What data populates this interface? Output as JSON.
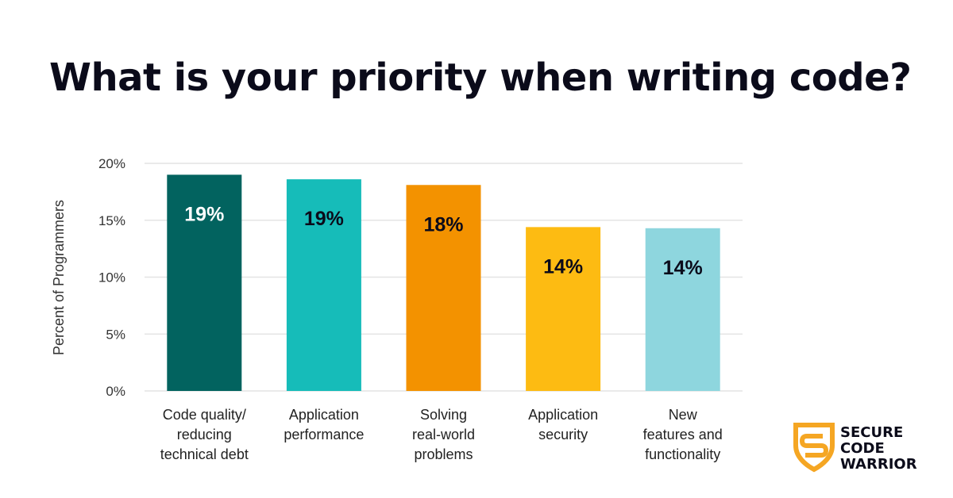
{
  "chart_data": {
    "type": "bar",
    "title": "What is your priority when writing code?",
    "ylabel": "Percent of Programmers",
    "ylim": [
      0,
      20
    ],
    "yticks": [
      0,
      5,
      10,
      15,
      20
    ],
    "ytick_labels": [
      "0%",
      "5%",
      "10%",
      "15%",
      "20%"
    ],
    "grid": true,
    "categories": [
      [
        "Code quality/",
        "reducing",
        "technical debt"
      ],
      [
        "Application",
        "performance"
      ],
      [
        "Solving",
        "real-world",
        "problems"
      ],
      [
        "Application",
        "security"
      ],
      [
        "New",
        "features and",
        "functionality"
      ]
    ],
    "values": [
      19.0,
      18.6,
      18.1,
      14.4,
      14.3
    ],
    "data_labels": [
      "19%",
      "19%",
      "18%",
      "14%",
      "14%"
    ],
    "colors": [
      "#02635f",
      "#16bcb9",
      "#f39200",
      "#fdbb12",
      "#8ed6de"
    ],
    "label_colors": [
      "#ffffff",
      "#0b0b1a",
      "#0b0b1a",
      "#0b0b1a",
      "#0b0b1a"
    ]
  },
  "logo": {
    "lines": [
      "SECURE",
      "CODE",
      "WARRIOR"
    ],
    "color": "#f5a623"
  }
}
